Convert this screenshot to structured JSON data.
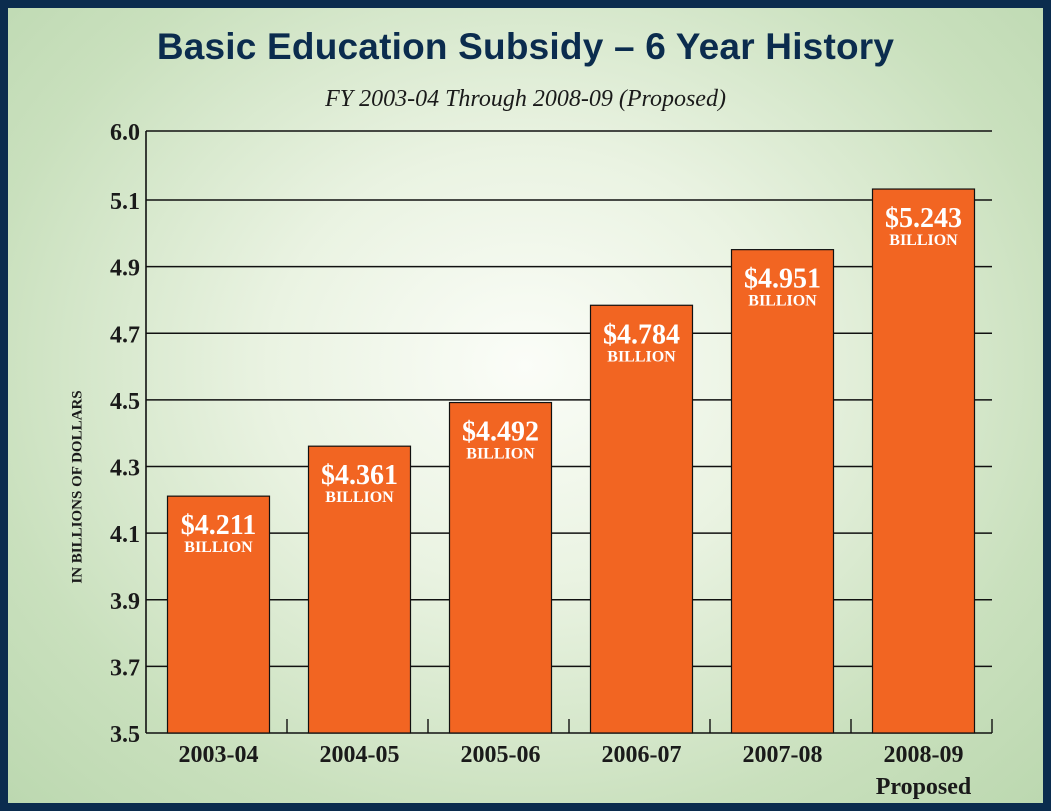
{
  "chart_data": {
    "type": "bar",
    "title": "Basic Education Subsidy – 6 Year History",
    "subtitle": "FY 2003-04 Through 2008-09 (Proposed)",
    "xlabel": "",
    "ylabel": "IN BILLIONS OF DOLLARS",
    "y_ticks": [
      3.5,
      3.7,
      3.9,
      4.1,
      4.3,
      4.5,
      4.7,
      4.9,
      5.1,
      6.0
    ],
    "y_tick_labels": [
      "3.5",
      "3.7",
      "3.9",
      "4.1",
      "4.3",
      "4.5",
      "4.7",
      "4.9",
      "5.1",
      "6.0"
    ],
    "axis_scale_note": "broken scale between 5.1 and 6.0",
    "categories": [
      "2003-04",
      "2004-05",
      "2005-06",
      "2006-07",
      "2007-08",
      "2008-09"
    ],
    "category_sublabels": [
      "",
      "",
      "",
      "",
      "",
      "Proposed"
    ],
    "values": [
      4.211,
      4.361,
      4.492,
      4.784,
      4.951,
      5.243
    ],
    "bar_labels": [
      "$4.211",
      "$4.361",
      "$4.492",
      "$4.784",
      "$4.951",
      "$5.243"
    ],
    "bar_unit_label": "BILLION",
    "grid": true,
    "legend": "none",
    "colors": {
      "bar": "#f26522",
      "bar_edge": "#111111",
      "frame": "#0b2c4e",
      "title": "#0b2c4e"
    }
  }
}
